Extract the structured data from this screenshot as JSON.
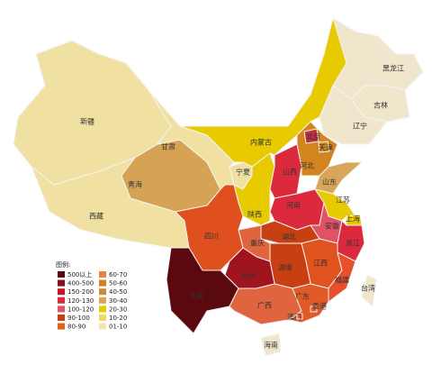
{
  "legend": {
    "title": "图例:",
    "items": [
      {
        "label": "500以上",
        "color": "#5a0a0e"
      },
      {
        "label": "400-500",
        "color": "#8c0c1c"
      },
      {
        "label": "150-200",
        "color": "#c0182a"
      },
      {
        "label": "120-130",
        "color": "#dc2a3c"
      },
      {
        "label": "100-120",
        "color": "#e05264"
      },
      {
        "label": "90-100",
        "color": "#c84012"
      },
      {
        "label": "80-90",
        "color": "#e0601e"
      },
      {
        "label": "60-70",
        "color": "#ee8040"
      },
      {
        "label": "50-60",
        "color": "#d2801c"
      },
      {
        "label": "40-50",
        "color": "#c88c34"
      },
      {
        "label": "30-40",
        "color": "#d8a658"
      },
      {
        "label": "20-30",
        "color": "#e8ca00"
      },
      {
        "label": "10-20",
        "color": "#f0dc5a"
      },
      {
        "label": "01-10",
        "color": "#f2e6b0"
      }
    ]
  },
  "regions": [
    {
      "name": "新疆",
      "color": "#f0e0a2"
    },
    {
      "name": "西藏",
      "color": "#f0e0a2"
    },
    {
      "name": "青海",
      "color": "#d6a254"
    },
    {
      "name": "甘肃",
      "color": "#f0e0a2"
    },
    {
      "name": "内蒙古",
      "color": "#e8ca00"
    },
    {
      "name": "黑龙江",
      "color": "#efe6cc"
    },
    {
      "name": "吉林",
      "color": "#efe6cc"
    },
    {
      "name": "辽宁",
      "color": "#efe6cc"
    },
    {
      "name": "宁夏",
      "color": "#f0e0a2"
    },
    {
      "name": "陕西",
      "color": "#e8ca00"
    },
    {
      "name": "山西",
      "color": "#dc2a3c"
    },
    {
      "name": "河北",
      "color": "#d2841e"
    },
    {
      "name": "北京",
      "color": "#c0303e"
    },
    {
      "name": "天津",
      "color": "#d2841e"
    },
    {
      "name": "山东",
      "color": "#d8a658"
    },
    {
      "name": "河南",
      "color": "#dc2a3c"
    },
    {
      "name": "江苏",
      "color": "#e8ca00"
    },
    {
      "name": "上海",
      "color": "#e8ca00"
    },
    {
      "name": "安徽",
      "color": "#e05264"
    },
    {
      "name": "湖北",
      "color": "#c84012"
    },
    {
      "name": "浙江",
      "color": "#dc2a3c"
    },
    {
      "name": "江西",
      "color": "#e0521e"
    },
    {
      "name": "福建",
      "color": "#e8502c"
    },
    {
      "name": "湖南",
      "color": "#c84012"
    },
    {
      "name": "重庆",
      "color": "#e0643e"
    },
    {
      "name": "四川",
      "color": "#e0501e"
    },
    {
      "name": "贵州",
      "color": "#a0141e"
    },
    {
      "name": "云南",
      "color": "#5a0a0e"
    },
    {
      "name": "广西",
      "color": "#e0643e"
    },
    {
      "name": "广东",
      "color": "#e05a28"
    },
    {
      "name": "香港",
      "color": "#e05a28"
    },
    {
      "name": "澳门",
      "color": "#e05a28"
    },
    {
      "name": "台湾",
      "color": "#efe6cc"
    },
    {
      "name": "海南",
      "color": "#efe6cc"
    }
  ]
}
